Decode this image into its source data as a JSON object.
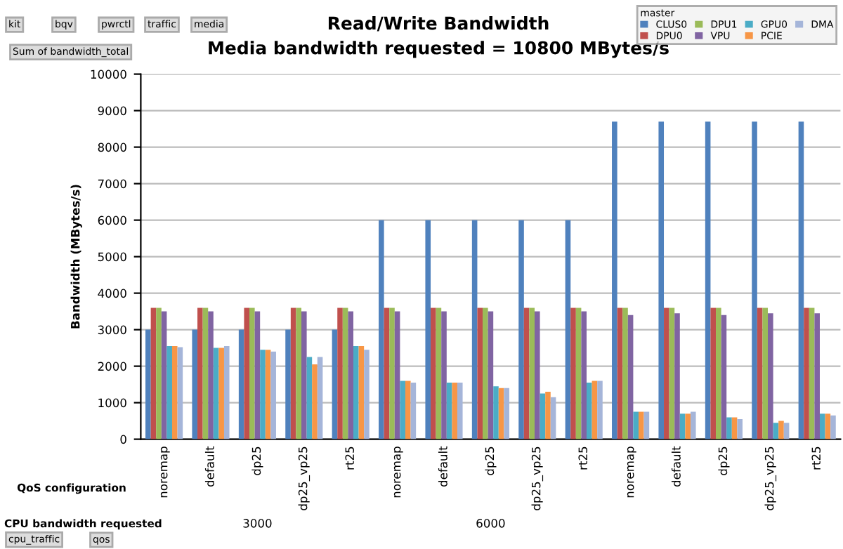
{
  "chart_data": {
    "type": "bar",
    "title": "Read/Write Bandwidth",
    "subtitle": "Media bandwidth requested = 10800 MBytes/s",
    "xlabel": "QoS configuration",
    "ylabel": "Bandwidth (MBytes/s)",
    "legend_title": "master",
    "categories": [
      "noremap",
      "default",
      "dp25",
      "dp25_vp25",
      "rt25",
      "noremap",
      "default",
      "dp25",
      "dp25_vp25",
      "rt25",
      "noremap",
      "default",
      "dp25",
      "dp25_vp25",
      "rt25"
    ],
    "series": [
      {
        "name": "CLUS0",
        "color": "#4f81bd",
        "values": [
          3000,
          3000,
          3000,
          3000,
          3000,
          6000,
          6000,
          6000,
          6000,
          6000,
          8700,
          8700,
          8700,
          8700,
          8700
        ]
      },
      {
        "name": "DPU0",
        "color": "#c0504d",
        "values": [
          3600,
          3600,
          3600,
          3600,
          3600,
          3600,
          3600,
          3600,
          3600,
          3600,
          3600,
          3600,
          3600,
          3600,
          3600
        ]
      },
      {
        "name": "DPU1",
        "color": "#9bbb59",
        "values": [
          3600,
          3600,
          3600,
          3600,
          3600,
          3600,
          3600,
          3600,
          3600,
          3600,
          3600,
          3600,
          3600,
          3600,
          3600
        ]
      },
      {
        "name": "VPU",
        "color": "#8064a2",
        "values": [
          3500,
          3500,
          3500,
          3500,
          3500,
          3500,
          3500,
          3500,
          3500,
          3500,
          3400,
          3450,
          3400,
          3450,
          3450
        ]
      },
      {
        "name": "GPU0",
        "color": "#4bacc6",
        "values": [
          2550,
          2500,
          2450,
          2250,
          2550,
          1600,
          1550,
          1450,
          1250,
          1550,
          750,
          700,
          600,
          450,
          700
        ]
      },
      {
        "name": "PCIE",
        "color": "#f79646",
        "values": [
          2550,
          2500,
          2450,
          2050,
          2550,
          1600,
          1550,
          1400,
          1300,
          1600,
          750,
          700,
          600,
          500,
          700
        ]
      },
      {
        "name": "DMA",
        "color": "#a5b5d9",
        "values": [
          2520,
          2550,
          2400,
          2250,
          2450,
          1550,
          1550,
          1400,
          1150,
          1600,
          750,
          750,
          550,
          450,
          650
        ]
      }
    ],
    "ylim": [
      0,
      10000
    ],
    "yticks": [
      0,
      1000,
      2000,
      3000,
      4000,
      5000,
      6000,
      7000,
      8000,
      9000,
      10000
    ],
    "grid": "y",
    "legend": "top right",
    "annotations": [
      "kit",
      "bqv",
      "pwrctl",
      "traffic",
      "media",
      "Sum of bandwidth_total",
      "CPU bandwidth requested",
      "3000",
      "6000",
      "cpu_traffic",
      "qos"
    ]
  }
}
